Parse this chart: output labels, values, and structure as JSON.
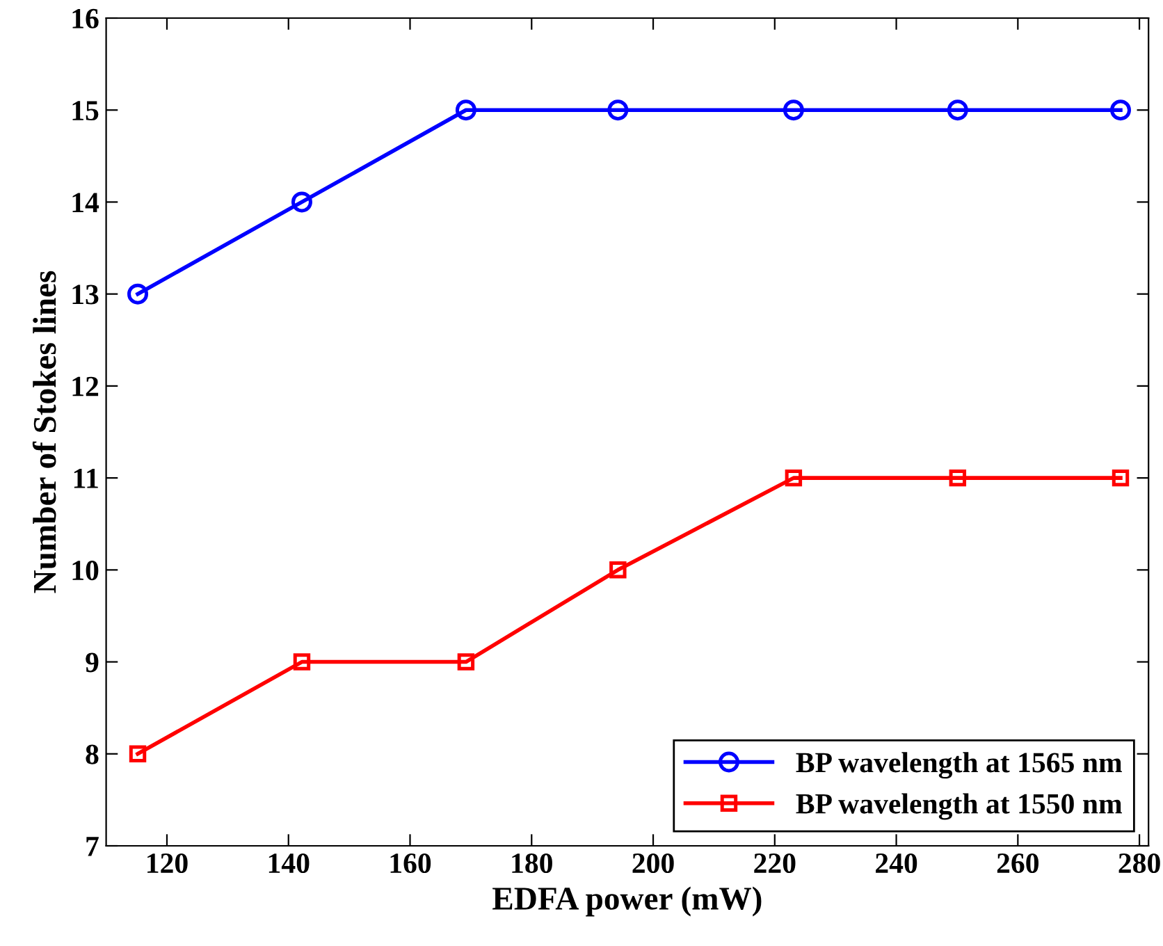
{
  "chart_data": {
    "type": "line",
    "xlabel": "EDFA power (mW)",
    "ylabel": "Number of Stokes lines",
    "x": [
      115.2,
      142.2,
      169.2,
      194.2,
      223.1,
      250.1,
      276.9
    ],
    "series": [
      {
        "name": "BP wavelength at 1565 nm",
        "color": "#0000ff",
        "marker": "circle",
        "values": [
          13,
          14,
          15,
          15,
          15,
          15,
          15
        ]
      },
      {
        "name": "BP wavelength at 1550 nm",
        "color": "#ff0000",
        "marker": "square",
        "values": [
          8,
          9,
          9,
          10,
          11,
          11,
          11
        ]
      }
    ],
    "xlim": [
      110,
      281.5
    ],
    "xticks": [
      120,
      140,
      160,
      180,
      200,
      220,
      240,
      260,
      280
    ],
    "ylim": [
      7,
      16
    ],
    "yticks": [
      7,
      8,
      9,
      10,
      11,
      12,
      13,
      14,
      15,
      16
    ],
    "grid": false,
    "legend": "bottom right",
    "line_style": "solid"
  }
}
